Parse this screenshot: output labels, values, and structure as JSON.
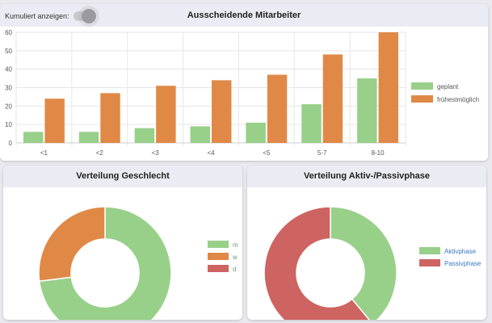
{
  "toggle": {
    "label": "Kumuliert anzeigen:",
    "checked": false
  },
  "colors": {
    "green": "#98d08a",
    "orange": "#e08947",
    "red": "#cd6462"
  },
  "cards": {
    "top_title": "Ausscheidende Mitarbeiter",
    "gender_title": "Verteilung Geschlecht",
    "phase_title": "Verteilung Aktiv-/Passivphase"
  },
  "chart_data": [
    {
      "type": "bar",
      "title": "Ausscheidende Mitarbeiter",
      "categories": [
        "<1",
        "<2",
        "<3",
        "<4",
        "<5",
        "5-7",
        "8-10"
      ],
      "series": [
        {
          "name": "geplant",
          "color": "#98d08a",
          "values": [
            6,
            6,
            8,
            9,
            11,
            21,
            35
          ]
        },
        {
          "name": "frühestmöglich",
          "color": "#e08947",
          "values": [
            24,
            27,
            31,
            34,
            37,
            48,
            60
          ]
        }
      ],
      "yticks": [
        0,
        10,
        20,
        30,
        40,
        50,
        60
      ],
      "ylim": [
        0,
        60
      ],
      "grid": true,
      "legend": "right"
    },
    {
      "type": "pie",
      "title": "Verteilung Geschlecht",
      "labels": [
        "m",
        "w",
        "d"
      ],
      "values": [
        73,
        27,
        0
      ],
      "colors": [
        "#98d08a",
        "#e08947",
        "#cd6462"
      ],
      "legend": "right"
    },
    {
      "type": "pie",
      "title": "Verteilung Aktiv-/Passivphase",
      "labels": [
        "Aktivphase",
        "Passivphase"
      ],
      "values": [
        39,
        61
      ],
      "colors": [
        "#98d08a",
        "#cd6462"
      ],
      "legend": "right"
    }
  ]
}
